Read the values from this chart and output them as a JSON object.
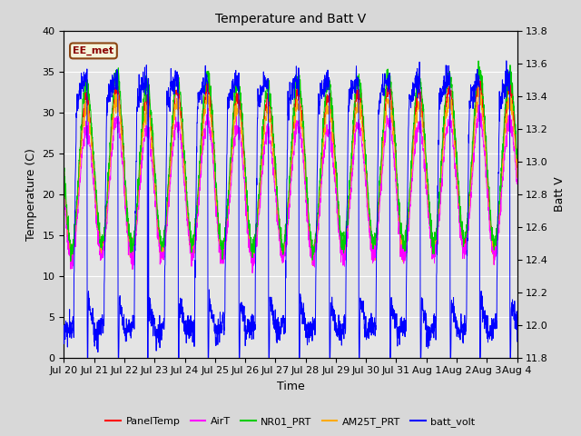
{
  "title": "Temperature and Batt V",
  "xlabel": "Time",
  "ylabel_left": "Temperature (C)",
  "ylabel_right": "Batt V",
  "annotation": "EE_met",
  "ylim_left": [
    0,
    40
  ],
  "ylim_right": [
    11.8,
    13.8
  ],
  "background_color": "#f0f0f0",
  "plot_bg_color": "#e8e8e8",
  "grid_color": "#ffffff",
  "legend_entries": [
    "PanelTemp",
    "AirT",
    "NR01_PRT",
    "AM25T_PRT",
    "batt_volt"
  ],
  "legend_colors": [
    "#ff0000",
    "#ff00ff",
    "#00cc00",
    "#ffaa00",
    "#0000ff"
  ],
  "line_colors": {
    "PanelTemp": "#ff0000",
    "AirT": "#ff00ff",
    "NR01_PRT": "#00cc00",
    "AM25T_PRT": "#ffaa00",
    "batt_volt": "#0000ff"
  },
  "x_tick_labels": [
    "Jul 20",
    "Jul 21",
    "Jul 22",
    "Jul 23",
    "Jul 24",
    "Jul 25",
    "Jul 26",
    "Jul 27",
    "Jul 28",
    "Jul 29",
    "Jul 30",
    "Jul 31",
    "Aug 1",
    "Aug 2",
    "Aug 3",
    "Aug 4"
  ],
  "num_days": 15,
  "points_per_day": 144
}
